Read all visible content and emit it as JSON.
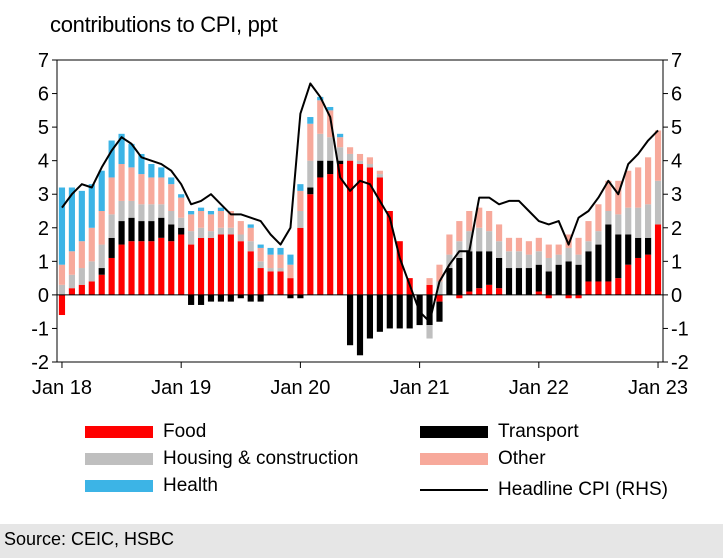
{
  "chart_data": {
    "type": "bar",
    "title": "contributions to CPI, ppt",
    "stacked": true,
    "ylim": [
      -2,
      7
    ],
    "y_ticks": [
      -2,
      -1,
      0,
      1,
      2,
      3,
      4,
      5,
      6,
      7
    ],
    "y_ticks_right": [
      -2,
      -1,
      0,
      1,
      2,
      3,
      4,
      5,
      6,
      7
    ],
    "x_tick_labels": [
      "Jan 18",
      "Jan 19",
      "Jan 20",
      "Jan 21",
      "Jan 22",
      "Jan 23"
    ],
    "months": [
      "Jan 18",
      "Feb 18",
      "Mar 18",
      "Apr 18",
      "May 18",
      "Jun 18",
      "Jul 18",
      "Aug 18",
      "Sep 18",
      "Oct 18",
      "Nov 18",
      "Dec 18",
      "Jan 19",
      "Feb 19",
      "Mar 19",
      "Apr 19",
      "May 19",
      "Jun 19",
      "Jul 19",
      "Aug 19",
      "Sep 19",
      "Oct 19",
      "Nov 19",
      "Dec 19",
      "Jan 20",
      "Feb 20",
      "Mar 20",
      "Apr 20",
      "May 20",
      "Jun 20",
      "Jul 20",
      "Aug 20",
      "Sep 20",
      "Oct 20",
      "Nov 20",
      "Dec 20",
      "Jan 21",
      "Feb 21",
      "Mar 21",
      "Apr 21",
      "May 21",
      "Jun 21",
      "Jul 21",
      "Aug 21",
      "Sep 21",
      "Oct 21",
      "Nov 21",
      "Dec 21",
      "Jan 22",
      "Feb 22",
      "Mar 22",
      "Apr 22",
      "May 22",
      "Jun 22",
      "Jul 22",
      "Aug 22",
      "Sep 22",
      "Oct 22",
      "Nov 22",
      "Dec 22",
      "Jan 23"
    ],
    "series": [
      {
        "name": "Food",
        "color": "#ff0000",
        "values": [
          -0.6,
          0.2,
          0.3,
          0.4,
          0.6,
          1.1,
          1.5,
          1.6,
          1.6,
          1.6,
          1.7,
          1.6,
          1.8,
          1.5,
          1.7,
          1.7,
          1.8,
          1.8,
          1.6,
          1.3,
          0.8,
          0.7,
          0.7,
          0.5,
          2.0,
          3.0,
          3.5,
          3.6,
          3.9,
          4.0,
          3.9,
          3.8,
          3.5,
          2.5,
          1.6,
          0.5,
          0.0,
          0.3,
          -0.2,
          0.0,
          -0.1,
          0.1,
          0.2,
          0.3,
          0.2,
          0.0,
          0.0,
          0.0,
          0.1,
          -0.1,
          0.0,
          -0.1,
          -0.1,
          0.4,
          0.4,
          0.4,
          0.5,
          0.9,
          1.1,
          1.2,
          2.1
        ]
      },
      {
        "name": "Transport",
        "color": "#000000",
        "values": [
          0.0,
          0.0,
          0.0,
          0.0,
          0.2,
          0.6,
          0.7,
          0.7,
          0.6,
          0.6,
          0.6,
          0.5,
          0.2,
          -0.3,
          -0.3,
          -0.2,
          -0.2,
          -0.2,
          -0.1,
          -0.2,
          -0.2,
          0.0,
          0.0,
          -0.1,
          -0.1,
          0.2,
          0.5,
          0.4,
          0.1,
          -1.5,
          -1.8,
          -1.3,
          -1.1,
          -1.0,
          -1.0,
          -1.0,
          -0.9,
          -0.9,
          -0.6,
          0.8,
          1.1,
          1.2,
          1.1,
          1.0,
          0.9,
          0.8,
          0.8,
          0.8,
          0.8,
          0.7,
          0.9,
          1.0,
          0.9,
          0.9,
          1.1,
          1.7,
          1.3,
          0.9,
          0.6,
          0.5,
          0.0
        ]
      },
      {
        "name": "Housing & construction",
        "color": "#bfbfbf",
        "values": [
          0.3,
          0.4,
          0.5,
          0.6,
          0.7,
          0.7,
          0.6,
          0.5,
          0.5,
          0.5,
          0.4,
          0.4,
          0.3,
          0.4,
          0.3,
          0.2,
          0.2,
          0.2,
          0.2,
          0.3,
          0.2,
          0.1,
          0.1,
          0.0,
          0.5,
          0.8,
          0.8,
          0.7,
          0.4,
          0.2,
          0.1,
          0.1,
          0.1,
          0.0,
          0.0,
          0.0,
          0.0,
          -0.4,
          0.4,
          0.4,
          0.5,
          0.6,
          0.7,
          0.6,
          0.5,
          0.5,
          0.5,
          0.4,
          0.4,
          0.4,
          0.3,
          0.4,
          0.3,
          0.3,
          0.4,
          0.4,
          0.6,
          0.8,
          0.9,
          1.0,
          1.3
        ]
      },
      {
        "name": "Other",
        "color": "#f7a99b",
        "values": [
          0.6,
          0.7,
          0.8,
          1.0,
          1.0,
          1.1,
          1.1,
          1.0,
          0.9,
          0.8,
          0.8,
          0.8,
          0.6,
          0.5,
          0.5,
          0.5,
          0.5,
          0.5,
          0.4,
          0.4,
          0.4,
          0.4,
          0.4,
          0.4,
          0.6,
          1.1,
          1.0,
          0.8,
          0.3,
          0.2,
          0.2,
          0.2,
          0.1,
          0.0,
          0.0,
          0.0,
          0.0,
          0.2,
          0.5,
          0.6,
          0.6,
          0.6,
          0.6,
          0.6,
          0.5,
          0.4,
          0.4,
          0.4,
          0.4,
          0.4,
          0.3,
          0.4,
          0.5,
          0.6,
          0.8,
          0.9,
          1.0,
          1.1,
          1.2,
          1.4,
          1.5
        ]
      },
      {
        "name": "Health",
        "color": "#3cb4e6",
        "values": [
          2.3,
          1.9,
          1.5,
          1.3,
          1.2,
          1.1,
          0.9,
          0.7,
          0.6,
          0.4,
          0.3,
          0.2,
          0.1,
          0.1,
          0.1,
          0.1,
          0.1,
          0.0,
          0.0,
          0.1,
          0.1,
          0.2,
          0.2,
          0.3,
          0.2,
          0.2,
          0.1,
          0.1,
          0.1,
          0.0,
          0.0,
          0.0,
          0.0,
          0.0,
          0.0,
          0.0,
          0.0,
          0.0,
          0.0,
          0.0,
          0.0,
          0.0,
          0.0,
          0.0,
          0.0,
          0.0,
          0.0,
          0.0,
          0.0,
          0.0,
          0.0,
          0.0,
          0.0,
          0.0,
          0.0,
          0.0,
          0.0,
          0.0,
          0.0,
          0.0,
          0.0
        ]
      }
    ],
    "line": {
      "name": "Headline CPI (RHS)",
      "color": "#000000",
      "values": [
        2.6,
        3.0,
        3.3,
        3.2,
        3.8,
        4.3,
        4.7,
        4.5,
        4.1,
        4.0,
        3.9,
        3.7,
        3.3,
        2.7,
        2.8,
        3.0,
        2.7,
        2.4,
        2.4,
        2.3,
        2.2,
        1.8,
        1.5,
        2.0,
        5.4,
        6.3,
        5.9,
        5.3,
        3.5,
        3.1,
        3.4,
        3.3,
        2.8,
        2.3,
        1.1,
        0.3,
        -0.5,
        -0.8,
        0.4,
        0.9,
        1.3,
        1.3,
        2.9,
        2.9,
        2.7,
        2.8,
        2.8,
        2.5,
        2.2,
        2.1,
        2.2,
        1.5,
        2.3,
        2.5,
        2.9,
        3.4,
        3.0,
        3.9,
        4.2,
        4.6,
        4.9
      ]
    }
  },
  "legend": {
    "food": "Food",
    "transport": "Transport",
    "housing": "Housing & construction",
    "other": "Other",
    "health": "Health",
    "headline": "Headline CPI (RHS)"
  },
  "colors": {
    "food": "#ff0000",
    "transport": "#000000",
    "housing": "#bfbfbf",
    "other": "#f7a99b",
    "health": "#3cb4e6",
    "source_bg": "#e6e6e6"
  },
  "source": "Source: CEIC, HSBC"
}
